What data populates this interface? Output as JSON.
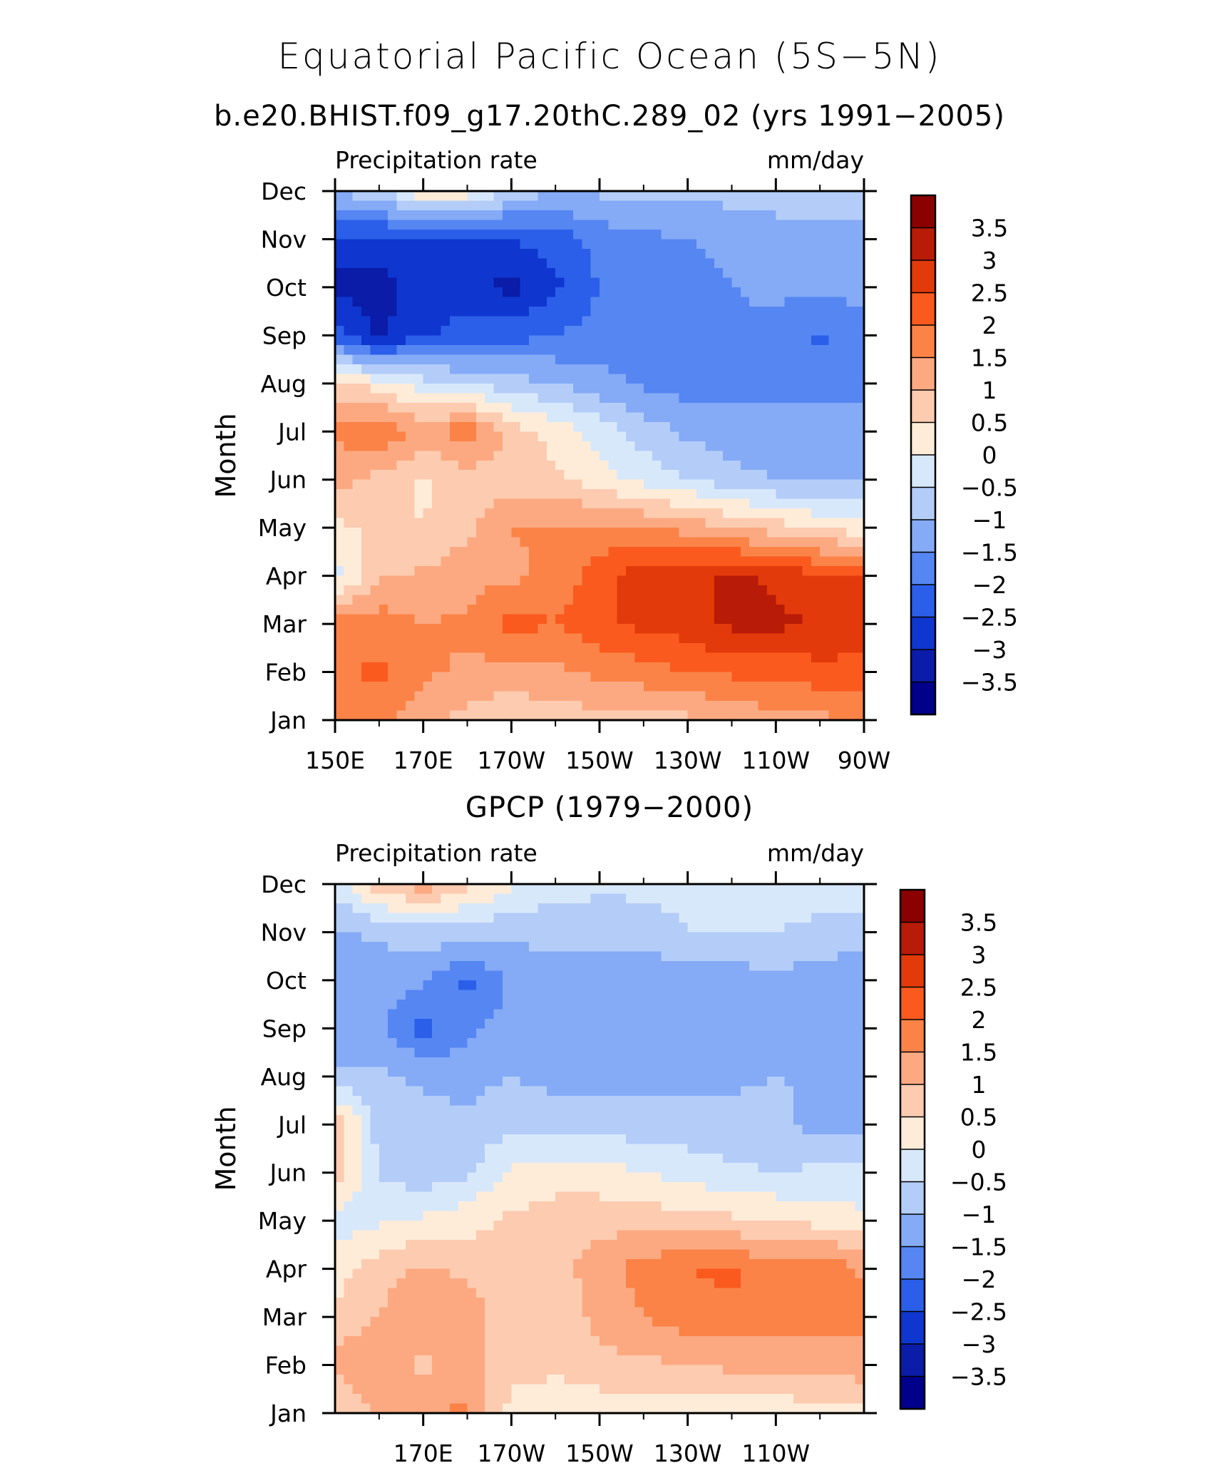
{
  "header": {
    "title": "Equatorial Pacific Ocean (5S−5N)",
    "subtitle": "b.e20.BHIST.f09_g17.20thC.289_02 (yrs 1991−2005)"
  },
  "colorbar": {
    "labels": [
      "3.5",
      "3",
      "2.5",
      "2",
      "1.5",
      "1",
      "0.5",
      "0",
      "−0.5",
      "−1",
      "−1.5",
      "−2",
      "−2.5",
      "−3",
      "−3.5"
    ],
    "colors": [
      "#8b0000",
      "#b81b07",
      "#e23a0b",
      "#fa5a1e",
      "#fb8347",
      "#fca982",
      "#fdcbb0",
      "#feecd9",
      "#d8e8fb",
      "#b3cdf8",
      "#85aaf6",
      "#5586f2",
      "#2b5fe9",
      "#0f37cf",
      "#0a1ca8",
      "#00008b"
    ]
  },
  "chart_data": [
    {
      "type": "heatmap",
      "title": "",
      "left_label": "Precipitation rate",
      "right_label": "mm/day",
      "ylabel": "Month",
      "y_categories": [
        "Jan",
        "Feb",
        "Mar",
        "Apr",
        "May",
        "Jun",
        "Jul",
        "Aug",
        "Sep",
        "Oct",
        "Nov",
        "Dec"
      ],
      "x_tick_labels": [
        "150E",
        "170E",
        "170W",
        "150W",
        "130W",
        "110W",
        "90W"
      ],
      "x_tick_lon": [
        150,
        170,
        190,
        210,
        230,
        250,
        270
      ],
      "x_range": [
        150,
        270
      ],
      "levels": [
        -3.5,
        -3,
        -2.5,
        -2,
        -1.5,
        -1,
        -0.5,
        0,
        0.5,
        1,
        1.5,
        2,
        2.5,
        3,
        3.5
      ],
      "z_lon": [
        150,
        160,
        170,
        180,
        190,
        200,
        210,
        220,
        230,
        240,
        250,
        260,
        270
      ],
      "z": [
        [
          1.6,
          1.8,
          1.1,
          0.8,
          0.6,
          0.7,
          0.8,
          0.8,
          0.9,
          1.1,
          1.3,
          1.4,
          1.5
        ],
        [
          1.9,
          2.1,
          1.6,
          1.4,
          1.3,
          1.4,
          1.6,
          1.8,
          2.0,
          2.1,
          2.2,
          2.3,
          2.3
        ],
        [
          1.7,
          1.8,
          1.5,
          1.6,
          2.2,
          2.0,
          2.4,
          2.6,
          2.8,
          3.1,
          3.1,
          3.0,
          2.9
        ],
        [
          -0.3,
          0.9,
          1.1,
          1.3,
          1.4,
          1.6,
          2.3,
          2.8,
          2.9,
          3.1,
          2.9,
          2.6,
          2.5
        ],
        [
          0.4,
          0.6,
          0.5,
          0.9,
          1.5,
          1.6,
          1.6,
          1.5,
          1.3,
          1.0,
          0.7,
          0.4,
          0.2
        ],
        [
          1.2,
          0.8,
          0.4,
          0.7,
          0.8,
          0.6,
          0.2,
          -0.2,
          -0.5,
          -0.8,
          -1.0,
          -1.1,
          -1.1
        ],
        [
          1.6,
          2.0,
          1.3,
          1.9,
          0.8,
          0.3,
          -0.2,
          -0.7,
          -1.1,
          -1.3,
          -1.4,
          -1.3,
          -1.3
        ],
        [
          0.6,
          0.3,
          -0.3,
          -0.5,
          -0.8,
          -1.0,
          -1.3,
          -1.6,
          -1.7,
          -1.6,
          -1.6,
          -1.6,
          -1.7
        ],
        [
          -2.2,
          -3.1,
          -2.6,
          -2.2,
          -2.2,
          -2.0,
          -1.8,
          -1.8,
          -1.8,
          -1.6,
          -1.6,
          -2.1,
          -1.7
        ],
        [
          -3.2,
          -3.2,
          -2.8,
          -2.8,
          -3.2,
          -2.6,
          -2.0,
          -1.8,
          -1.7,
          -1.5,
          -1.4,
          -1.4,
          -1.3
        ],
        [
          -2.6,
          -2.7,
          -2.6,
          -2.6,
          -2.5,
          -2.3,
          -1.8,
          -1.6,
          -1.5,
          -1.4,
          -1.3,
          -1.3,
          -1.3
        ],
        [
          -1.0,
          -0.6,
          0.4,
          0.3,
          -0.6,
          -1.0,
          -0.9,
          -0.9,
          -0.9,
          -0.8,
          -0.7,
          -0.7,
          -0.7
        ]
      ]
    },
    {
      "type": "heatmap",
      "title": "GPCP (1979−2000)",
      "left_label": "Precipitation rate",
      "right_label": "mm/day",
      "ylabel": "Month",
      "y_categories": [
        "Jan",
        "Feb",
        "Mar",
        "Apr",
        "May",
        "Jun",
        "Jul",
        "Aug",
        "Sep",
        "Oct",
        "Nov",
        "Dec"
      ],
      "x_tick_labels": [
        "170E",
        "170W",
        "150W",
        "130W",
        "110W"
      ],
      "x_tick_lon": [
        170,
        190,
        210,
        230,
        250
      ],
      "x_range": [
        150,
        270
      ],
      "levels": [
        -3.5,
        -3,
        -2.5,
        -2,
        -1.5,
        -1,
        -0.5,
        0,
        0.5,
        1,
        1.5,
        2,
        2.5,
        3,
        3.5
      ],
      "z_lon": [
        150,
        160,
        170,
        180,
        190,
        200,
        210,
        220,
        230,
        240,
        250,
        260,
        270
      ],
      "z": [
        [
          0.4,
          1.1,
          1.4,
          1.6,
          0.3,
          0.2,
          0.2,
          0.2,
          0.2,
          0.2,
          0.2,
          0.3,
          0.4
        ],
        [
          1.2,
          1.3,
          0.9,
          1.3,
          0.7,
          0.6,
          0.8,
          0.9,
          1.0,
          1.1,
          1.1,
          1.2,
          1.3
        ],
        [
          0.7,
          1.0,
          1.4,
          1.3,
          0.6,
          0.5,
          1.2,
          1.5,
          1.8,
          1.9,
          1.8,
          1.8,
          1.6
        ],
        [
          0.2,
          0.8,
          1.1,
          0.9,
          0.6,
          0.8,
          1.3,
          1.7,
          2.0,
          2.1,
          1.6,
          2.0,
          1.4
        ],
        [
          -0.2,
          -0.1,
          0.1,
          0.3,
          0.6,
          0.7,
          0.8,
          0.8,
          0.7,
          0.6,
          0.5,
          0.3,
          0.1
        ],
        [
          0.8,
          -0.6,
          -0.8,
          -0.6,
          0.1,
          0.3,
          0.2,
          0.0,
          -0.2,
          -0.4,
          -0.5,
          -0.4,
          -0.3
        ],
        [
          1.0,
          -0.7,
          -0.8,
          -0.9,
          -0.6,
          -0.7,
          -0.7,
          -0.8,
          -0.8,
          -0.8,
          -0.8,
          -1.2,
          -1.1
        ],
        [
          -0.9,
          -0.9,
          -1.1,
          -1.2,
          -1.0,
          -1.2,
          -1.3,
          -1.2,
          -1.1,
          -1.1,
          -1.0,
          -1.1,
          -1.2
        ],
        [
          -1.4,
          -1.4,
          -2.2,
          -1.6,
          -1.3,
          -1.2,
          -1.4,
          -1.4,
          -1.4,
          -1.3,
          -1.1,
          -1.3,
          -1.4
        ],
        [
          -1.5,
          -1.3,
          -1.4,
          -2.2,
          -1.4,
          -1.2,
          -1.3,
          -1.4,
          -1.4,
          -1.3,
          -1.1,
          -1.3,
          -1.5
        ],
        [
          -1.1,
          -0.9,
          -0.7,
          -0.7,
          -0.9,
          -0.8,
          -0.8,
          -0.7,
          -0.5,
          -0.5,
          -0.5,
          -0.6,
          -0.7
        ],
        [
          -0.3,
          0.8,
          1.3,
          0.6,
          0.1,
          -0.3,
          -0.4,
          -0.4,
          -0.4,
          -0.4,
          -0.3,
          -0.3,
          -0.3
        ]
      ]
    }
  ]
}
